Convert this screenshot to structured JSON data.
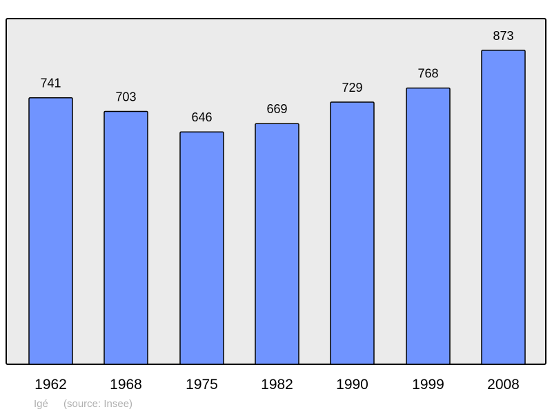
{
  "chart_data": {
    "type": "bar",
    "categories": [
      "1962",
      "1968",
      "1975",
      "1982",
      "1990",
      "1999",
      "2008"
    ],
    "values": [
      741,
      703,
      646,
      669,
      729,
      768,
      873
    ],
    "title": "",
    "xlabel": "",
    "ylabel": "",
    "ylim": [
      0,
      961
    ],
    "grid": false,
    "data_labels": true,
    "colors": {
      "bar": "#7094ff",
      "plot_background": "#ebebeb",
      "stroke": "#000000"
    }
  },
  "footer": {
    "author": "Igé",
    "source": "(source: Insee)"
  }
}
